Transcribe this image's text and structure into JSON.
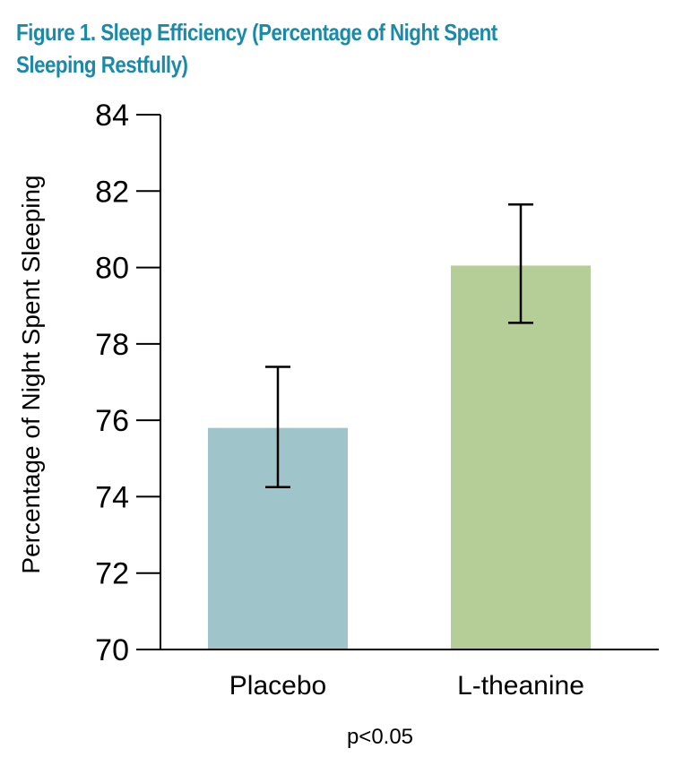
{
  "figure": {
    "title": "Figure 1. Sleep Efficiency (Percentage of Night Spent Sleeping Restfully)"
  },
  "chart_data": {
    "type": "bar",
    "title": "Figure 1. Sleep Efficiency (Percentage of Night Spent Sleeping Restfully)",
    "xlabel": "",
    "ylabel": "Percentage of Night Spent Sleeping",
    "categories": [
      "Placebo",
      "L-theanine"
    ],
    "values": [
      75.8,
      80.05
    ],
    "error_upper": [
      77.4,
      81.65
    ],
    "error_lower": [
      74.25,
      78.55
    ],
    "ylim": [
      70,
      84
    ],
    "yticks": [
      70,
      72,
      74,
      76,
      78,
      80,
      82,
      84
    ],
    "bar_colors": [
      "#9fc4c9",
      "#b5cd97"
    ],
    "grid": false,
    "annotation": "p<0.05"
  }
}
